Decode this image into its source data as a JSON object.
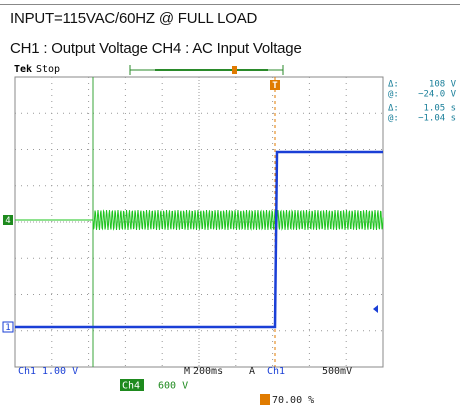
{
  "header": {
    "line1": "INPUT=115VAC/60HZ @ FULL LOAD",
    "line2": "CH1 : Output Voltage CH4 : AC Input Voltage"
  },
  "scope": {
    "status": {
      "brand": "Tek",
      "state": "Stop"
    },
    "markers": {
      "trigger": "T",
      "ch4": "4",
      "ch1": "1"
    },
    "readouts": [
      {
        "label": "Δ:",
        "value": "108 V"
      },
      {
        "label": "@:",
        "value": "−24.0 V"
      },
      {
        "label": "Δ:",
        "value": "1.05 s"
      },
      {
        "label": "@:",
        "value": "−1.04 s"
      }
    ],
    "bottom": {
      "ch1": "Ch1",
      "ch1_scale": "1.00 V",
      "time_prefix": "M",
      "time_scale": "200ms",
      "trig_prefix": "A",
      "trig_source": "Ch1",
      "trig_level": "500mV",
      "ch4": "Ch4",
      "ch4_scale": "600 V",
      "trig_pos": "70.00 %"
    }
  }
}
